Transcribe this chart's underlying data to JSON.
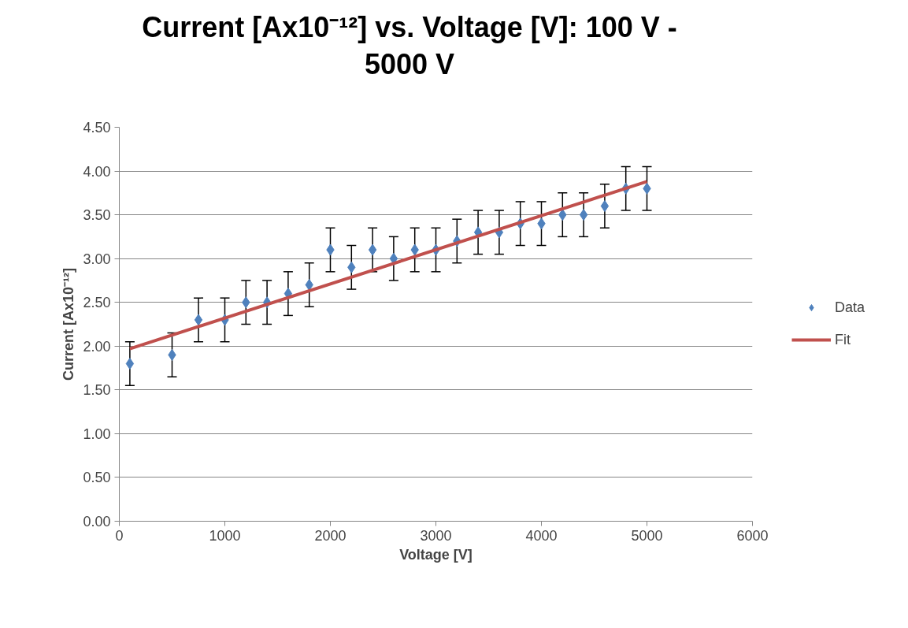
{
  "chart_data": {
    "type": "scatter",
    "title": "Current [Ax10⁻¹²] vs. Voltage [V]:  100 V - 5000 V",
    "xlabel": "Voltage [V]",
    "ylabel": "Current [Ax10⁻¹²]",
    "xlim": [
      0,
      6000
    ],
    "xticks": [
      0,
      1000,
      2000,
      3000,
      4000,
      5000,
      6000
    ],
    "ylim": [
      0,
      4.5
    ],
    "yticks": [
      {
        "value": 0,
        "label": "0.00"
      },
      {
        "value": 0.5,
        "label": "0.50"
      },
      {
        "value": 1,
        "label": "1.00"
      },
      {
        "value": 1.5,
        "label": "1.50"
      },
      {
        "value": 2,
        "label": "2.00"
      },
      {
        "value": 2.5,
        "label": "2.50"
      },
      {
        "value": 3,
        "label": "3.00"
      },
      {
        "value": 3.5,
        "label": "3.50"
      },
      {
        "value": 4,
        "label": "4.00"
      },
      {
        "value": 4.5,
        "label": "4.50"
      }
    ],
    "grid": "y",
    "legend": "right",
    "series": [
      {
        "name": "Data",
        "marker": "diamond",
        "color": "#4f81bd",
        "x": [
          100,
          500,
          750,
          1000,
          1200,
          1400,
          1600,
          1800,
          2000,
          2200,
          2400,
          2600,
          2800,
          3000,
          3200,
          3400,
          3600,
          3800,
          4000,
          4200,
          4400,
          4600,
          4800,
          5000
        ],
        "values": [
          1.8,
          1.9,
          2.3,
          2.3,
          2.5,
          2.5,
          2.6,
          2.7,
          3.1,
          2.9,
          3.1,
          3.0,
          3.1,
          3.1,
          3.2,
          3.3,
          3.3,
          3.4,
          3.4,
          3.5,
          3.5,
          3.6,
          3.8,
          3.8
        ],
        "errors": [
          0.25,
          0.25,
          0.25,
          0.25,
          0.25,
          0.25,
          0.25,
          0.25,
          0.25,
          0.25,
          0.25,
          0.25,
          0.25,
          0.25,
          0.25,
          0.25,
          0.25,
          0.25,
          0.25,
          0.25,
          0.25,
          0.25,
          0.25,
          0.25
        ]
      },
      {
        "name": "Fit",
        "type": "line",
        "marker": "none",
        "color": "#c0504d",
        "x": [
          100,
          5000
        ],
        "values": [
          1.97,
          3.88
        ]
      }
    ]
  }
}
